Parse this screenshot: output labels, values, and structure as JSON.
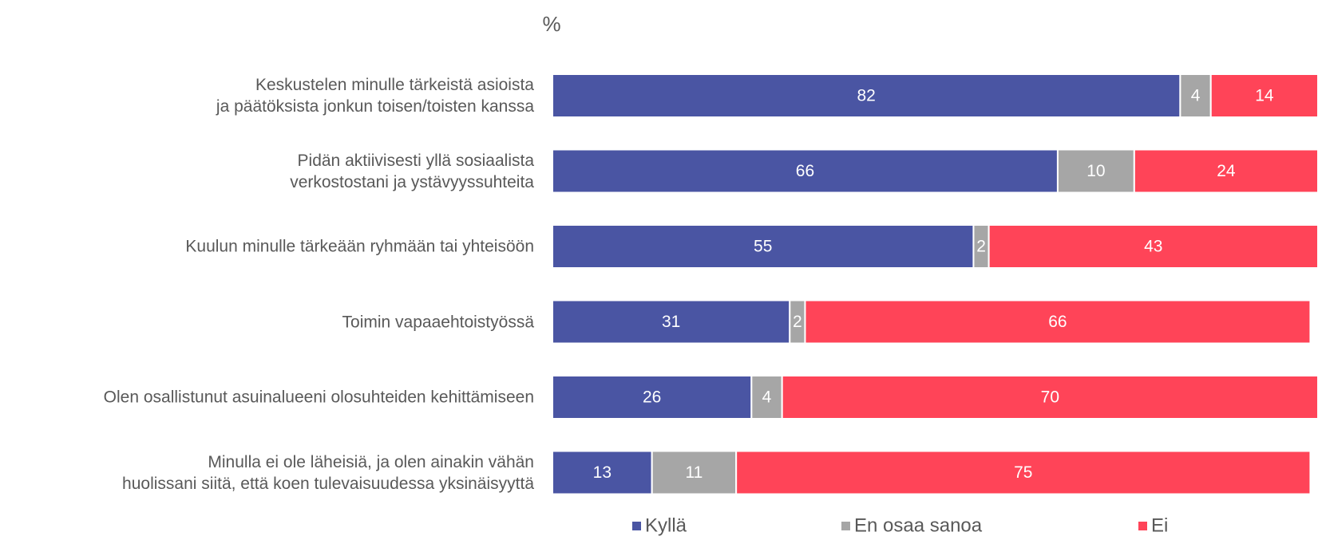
{
  "chart_data": {
    "type": "stacked_bar_horizontal",
    "title": "%",
    "categories": [
      "Keskustelen minulle tärkeistä asioista\nja päätöksista jonkun toisen/toisten kanssa",
      "Pidän aktiivisesti yllä sosiaalista\nverkostostani ja ystävyyssuhteita",
      "Kuulun minulle tärkeään ryhmään tai yhteisöön",
      "Toimin vapaaehtoistyössä",
      "Olen osallistunut asuinalueeni olosuhteiden kehittämiseen",
      "Minulla ei ole läheisiä, ja olen ainakin vähän\nhuolissani siitä, että koen tulevaisuudessa yksinäisyyttä"
    ],
    "series": [
      {
        "name": "Kyllä",
        "color": "#4a55a3",
        "values": [
          82,
          66,
          55,
          31,
          26,
          13
        ]
      },
      {
        "name": "En osaa sanoa",
        "color": "#a6a6a6",
        "values": [
          4,
          10,
          2,
          2,
          4,
          11
        ]
      },
      {
        "name": "Ei",
        "color": "#ff4458",
        "values": [
          14,
          24,
          43,
          66,
          70,
          75
        ]
      }
    ],
    "xlim": [
      0,
      100
    ],
    "legend": "bottom"
  }
}
